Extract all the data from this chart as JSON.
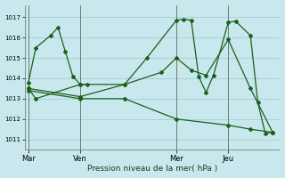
{
  "background_color": "#c8e8ee",
  "grid_color": "#a8ccd4",
  "line_color": "#1a5f1a",
  "title": "Pression niveau de la mer( hPa )",
  "ylim": [
    1010.5,
    1017.6
  ],
  "yticks": [
    1011,
    1012,
    1013,
    1014,
    1015,
    1016,
    1017
  ],
  "day_labels": [
    "Mar",
    "Ven",
    "Mer",
    "Jeu"
  ],
  "day_positions": [
    0,
    7,
    20,
    27
  ],
  "xmin": -0.5,
  "xmax": 34,
  "line1_x": [
    0,
    1,
    3,
    4,
    5,
    6,
    7,
    8
  ],
  "line1_y": [
    1013.8,
    1015.5,
    1016.1,
    1016.5,
    1015.3,
    1014.1,
    1013.7,
    1013.7
  ],
  "line2_x": [
    0,
    1,
    7,
    13,
    16,
    20,
    21,
    22,
    23,
    24,
    25,
    27,
    28,
    30,
    31,
    32,
    33
  ],
  "line2_y": [
    1013.5,
    1013.0,
    1013.7,
    1013.7,
    1015.0,
    1016.85,
    1016.9,
    1016.85,
    1014.1,
    1013.3,
    1014.15,
    1016.75,
    1016.8,
    1016.1,
    1012.8,
    1011.3,
    1011.35
  ],
  "line3_x": [
    0,
    7,
    13,
    18,
    20,
    22,
    24,
    27,
    30,
    33
  ],
  "line3_y": [
    1013.5,
    1013.1,
    1013.7,
    1014.3,
    1015.0,
    1014.4,
    1014.15,
    1015.9,
    1013.5,
    1011.35
  ],
  "line4_x": [
    0,
    7,
    13,
    20,
    27,
    30,
    33
  ],
  "line4_y": [
    1013.4,
    1013.0,
    1013.0,
    1012.0,
    1011.7,
    1011.5,
    1011.35
  ]
}
